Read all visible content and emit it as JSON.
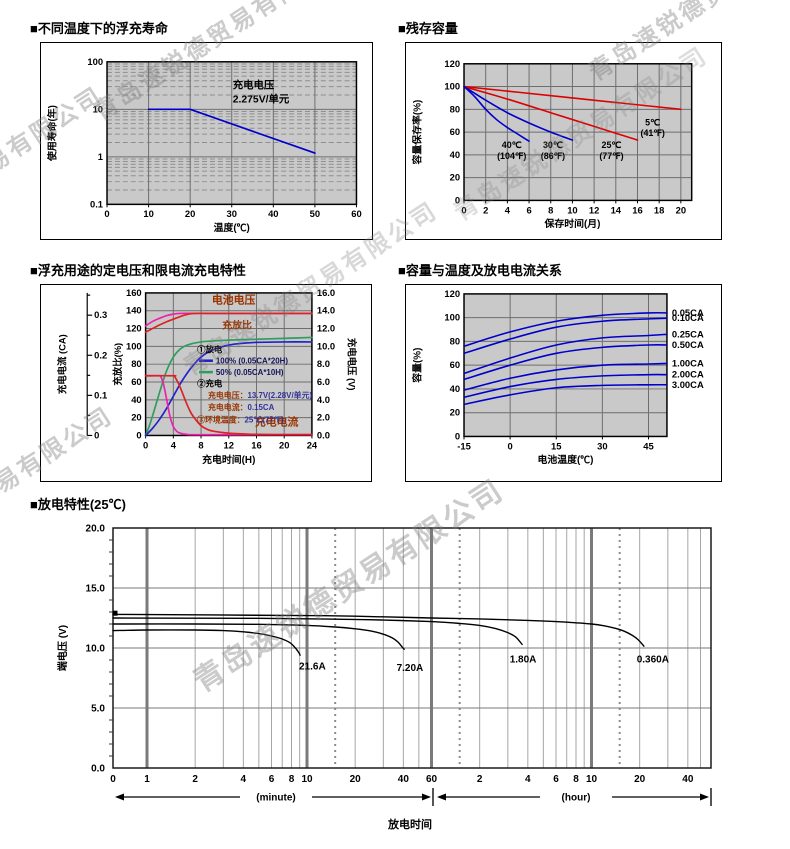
{
  "page": {
    "watermark_text": "青岛速锐德贸易有限公司",
    "background": "#ffffff"
  },
  "sections": {
    "float_life": {
      "title": "■不同温度下的浮充寿命"
    },
    "residual_capacity": {
      "title": "■残存容量"
    },
    "charge_characteristics": {
      "title": "■浮充用途的定电压和限电流充电特性"
    },
    "capacity_vs_temperature": {
      "title": "■容量与温度及放电电流关系"
    },
    "discharge_characteristics": {
      "title": "■放电特性(25℃)"
    }
  },
  "chart_data": [
    {
      "id": "float_life",
      "type": "line",
      "title": "■不同温度下的浮充寿命",
      "xlabel": "温度(℃)",
      "ylabel": "使用寿命(年)",
      "xlim": [
        0,
        60
      ],
      "x_ticks": [
        0,
        10,
        20,
        30,
        40,
        50,
        60
      ],
      "y_scale": "log",
      "ylim": [
        0.1,
        100
      ],
      "y_ticks": [
        100,
        10,
        1,
        0.1
      ],
      "annotation": [
        "充电电压",
        "2.275V/单元"
      ],
      "grid": true,
      "series": [
        {
          "name": "浮充寿命",
          "color": "#0000cc",
          "points": [
            [
              10,
              10
            ],
            [
              20,
              10
            ],
            [
              50,
              1.2
            ]
          ]
        }
      ]
    },
    {
      "id": "residual_capacity",
      "type": "line",
      "title": "■残存容量",
      "xlabel": "保存时间(月)",
      "ylabel": "容量保存率(%)",
      "xlim": [
        0,
        21
      ],
      "x_ticks": [
        0,
        2,
        4,
        6,
        8,
        10,
        12,
        14,
        16,
        18,
        20
      ],
      "ylim": [
        0,
        120
      ],
      "y_ticks": [
        0,
        20,
        40,
        60,
        80,
        100,
        120
      ],
      "grid": true,
      "series": [
        {
          "name": "5C",
          "label": [
            "5℃",
            "(41℉)"
          ],
          "label_pos": [
            17.4,
            66
          ],
          "color": "#dd0000",
          "points": [
            [
              0,
              100
            ],
            [
              5,
              95
            ],
            [
              10,
              90
            ],
            [
              15,
              85
            ],
            [
              20,
              80
            ]
          ]
        },
        {
          "name": "25C",
          "label": [
            "25℃",
            "(77℉)"
          ],
          "label_pos": [
            13.6,
            46
          ],
          "color": "#dd0000",
          "points": [
            [
              0,
              100
            ],
            [
              4,
              89
            ],
            [
              8,
              77
            ],
            [
              12,
              65
            ],
            [
              16,
              53
            ]
          ]
        },
        {
          "name": "30C",
          "label": [
            "30℃",
            "(86℉)"
          ],
          "label_pos": [
            8.2,
            46
          ],
          "color": "#0000cc",
          "points": [
            [
              0,
              100
            ],
            [
              2,
              88
            ],
            [
              4,
              77
            ],
            [
              6,
              68
            ],
            [
              8,
              60
            ],
            [
              10,
              53
            ]
          ]
        },
        {
          "name": "40C",
          "label": [
            "40℃",
            "(104℉)"
          ],
          "label_pos": [
            4.4,
            46
          ],
          "color": "#0000cc",
          "points": [
            [
              0,
              100
            ],
            [
              1,
              91
            ],
            [
              2,
              80
            ],
            [
              3,
              71
            ],
            [
              4,
              64
            ],
            [
              5,
              58
            ],
            [
              6,
              52
            ]
          ]
        }
      ]
    },
    {
      "id": "charge_characteristics",
      "type": "line",
      "title": "■浮充用途的定电压和限电流充电特性",
      "xlabel": "充电时间(H)",
      "xlim": [
        0,
        24
      ],
      "x_ticks": [
        0,
        4,
        8,
        12,
        16,
        20,
        24
      ],
      "axis_current": {
        "label": "充电电流 (CA)",
        "ticks": [
          0,
          0.1,
          0.2,
          0.3
        ],
        "pct_per_ca": 450
      },
      "axis_ratio": {
        "label": "充放比(%)",
        "ticks": [
          0,
          20,
          40,
          60,
          80,
          100,
          120,
          140,
          160
        ],
        "max": 160
      },
      "axis_voltage": {
        "label": "充电电压 (V)",
        "ticks": [
          "0.0",
          "2.0",
          "4.0",
          "6.0",
          "8.0",
          "10.0",
          "12.0",
          "14.0",
          "16.0"
        ],
        "max": 16
      },
      "plot_labels": [
        {
          "text": "电池电压",
          "x": 12.7,
          "pct": 148,
          "size": 11
        },
        {
          "text": "充放比",
          "x": 13.2,
          "pct": 120,
          "size": 10
        },
        {
          "text": "充电电流",
          "x": 18.9,
          "pct": 11,
          "size": 11
        }
      ],
      "legend": [
        {
          "type": "head",
          "text": "①放电"
        },
        {
          "type": "swatch",
          "color": "#2222cc",
          "text": "100% (0.05CA*20H)"
        },
        {
          "type": "swatch",
          "color": "#2e9e5e",
          "text": "50% (0.05CA*10H)"
        },
        {
          "type": "head",
          "text": "②充电"
        },
        {
          "type": "kv",
          "indent": 1,
          "label": "充电电压：",
          "value": "13.7V(2.28V/单元)"
        },
        {
          "type": "kv",
          "indent": 1,
          "label": "充电电流：",
          "value": "0.15CA"
        },
        {
          "type": "kv",
          "indent": 0,
          "label": "③环境温度：",
          "value": "25℃(77℉)"
        }
      ],
      "series": [
        {
          "name": "电池电压(50%放电)",
          "color": "#ee22aa",
          "unit": "V×10",
          "points": [
            [
              0,
              123
            ],
            [
              1,
              128
            ],
            [
              2,
              131.5
            ],
            [
              3,
              134.5
            ],
            [
              4,
              136.2
            ],
            [
              5,
              137
            ],
            [
              8,
              137
            ],
            [
              16,
              137
            ],
            [
              24,
              137
            ]
          ]
        },
        {
          "name": "电池电压(100%放电)",
          "color": "#dd2222",
          "unit": "V×10",
          "points": [
            [
              0,
              116
            ],
            [
              1,
              120
            ],
            [
              2,
              124
            ],
            [
              3,
              127.5
            ],
            [
              4,
              130.5
            ],
            [
              5,
              133.5
            ],
            [
              6,
              135.8
            ],
            [
              7,
              137
            ],
            [
              10,
              137
            ],
            [
              24,
              137
            ]
          ]
        },
        {
          "name": "充放比(50%放电)",
          "color": "#2e9e5e",
          "unit": "%",
          "points": [
            [
              0,
              0
            ],
            [
              0.5,
              10
            ],
            [
              1,
              22
            ],
            [
              2,
              48
            ],
            [
              3,
              72
            ],
            [
              4,
              88
            ],
            [
              5,
              97
            ],
            [
              6,
              101.5
            ],
            [
              8,
              105
            ],
            [
              12,
              107
            ],
            [
              16,
              108
            ],
            [
              20,
              109
            ],
            [
              24,
              110
            ]
          ]
        },
        {
          "name": "充放比(100%放电)",
          "color": "#2222cc",
          "unit": "%",
          "points": [
            [
              0,
              0
            ],
            [
              1,
              8
            ],
            [
              2,
              18
            ],
            [
              3,
              30
            ],
            [
              4,
              44
            ],
            [
              5,
              58
            ],
            [
              6,
              70
            ],
            [
              7,
              80
            ],
            [
              8,
              88
            ],
            [
              9,
              93.5
            ],
            [
              10,
              97
            ],
            [
              12,
              101.5
            ],
            [
              14,
              103.5
            ],
            [
              16,
              104.5
            ],
            [
              20,
              105
            ],
            [
              24,
              105
            ]
          ]
        },
        {
          "name": "充电电流(50%放电)",
          "color": "#ee22aa",
          "unit": "CA(×450)",
          "points": [
            [
              0,
              67
            ],
            [
              2.0,
              67
            ],
            [
              2.2,
              66
            ],
            [
              2.6,
              57
            ],
            [
              3,
              42
            ],
            [
              3.5,
              22
            ],
            [
              4,
              10
            ],
            [
              4.5,
              4.5
            ],
            [
              5,
              2.5
            ],
            [
              6,
              1.2
            ],
            [
              8,
              0.8
            ],
            [
              24,
              0.8
            ]
          ]
        },
        {
          "name": "充电电流(100%放电)",
          "color": "#dd2222",
          "unit": "CA(×450)",
          "points": [
            [
              0,
              67
            ],
            [
              4.0,
              67
            ],
            [
              4.2,
              66
            ],
            [
              4.7,
              59
            ],
            [
              5.2,
              50
            ],
            [
              5.8,
              38
            ],
            [
              6.5,
              26
            ],
            [
              7.2,
              18
            ],
            [
              8,
              11
            ],
            [
              9,
              6.5
            ],
            [
              10,
              4.5
            ],
            [
              12,
              2.5
            ],
            [
              14,
              1.8
            ],
            [
              16,
              1.2
            ],
            [
              20,
              1
            ],
            [
              24,
              1
            ]
          ]
        }
      ]
    },
    {
      "id": "capacity_vs_temperature",
      "type": "line",
      "title": "■容量与温度及放电电流关系",
      "xlabel": "电池温度(℃)",
      "ylabel": "容量(%)",
      "xlim": [
        -15,
        51
      ],
      "x_ticks": [
        -15,
        0,
        15,
        30,
        45
      ],
      "ylim": [
        0,
        120
      ],
      "y_ticks": [
        0,
        20,
        40,
        60,
        80,
        100,
        120
      ],
      "grid": true,
      "line_color": "#0000cc",
      "x_samples": [
        -15,
        0,
        15,
        30,
        45,
        51
      ],
      "series": [
        {
          "name": "0.05CA",
          "values": [
            76,
            88,
            97,
            102,
            104,
            104
          ]
        },
        {
          "name": "0.10CA",
          "values": [
            70,
            82,
            92,
            97,
            99,
            99.5
          ]
        },
        {
          "name": "0.25CA",
          "values": [
            53,
            66,
            77,
            83,
            85,
            86
          ]
        },
        {
          "name": "0.50CA",
          "values": [
            48,
            60,
            70,
            75,
            77,
            77
          ]
        },
        {
          "name": "1.00CA",
          "values": [
            39,
            49,
            56,
            60,
            61,
            61.5
          ]
        },
        {
          "name": "2.00CA",
          "values": [
            33,
            42,
            48,
            51,
            52,
            52
          ]
        },
        {
          "name": "3.00CA",
          "values": [
            27,
            35,
            41,
            43,
            43.5,
            43.5
          ]
        }
      ]
    },
    {
      "id": "discharge_characteristics",
      "type": "line",
      "title": "■放电特性(25℃)",
      "xlabel": "放电时间",
      "ylabel": "端电压 (V)",
      "ylim": [
        0,
        20
      ],
      "y_ticks": [
        "20.0",
        "15.0",
        "10.0",
        "5.0",
        "0.0"
      ],
      "x_axis": {
        "zero_label": "0",
        "minute_label": "(minute)",
        "hour_label": "(hour)",
        "minute_tick_labels": [
          1,
          2,
          4,
          6,
          8,
          10,
          20,
          40,
          60
        ],
        "hour_tick_labels": [
          2,
          4,
          6,
          8,
          10,
          20,
          40
        ],
        "minute_gridlines": [
          2,
          3,
          4,
          5,
          6,
          7,
          8,
          9,
          20,
          30,
          40,
          50
        ],
        "hour_gridlines": [
          2,
          3,
          4,
          5,
          6,
          7,
          8,
          9,
          20,
          30,
          40,
          48
        ],
        "decade_lines_min": [
          1,
          10,
          60,
          600
        ],
        "dotted_lines_min": [
          15,
          90,
          900
        ],
        "max_minutes": 3360
      },
      "start_marker_v": 12.9,
      "series": [
        {
          "name": "21.6A",
          "label": "21.6A",
          "label_at": [
            10.8,
            8.2
          ],
          "points_min": [
            [
              0,
              11.45
            ],
            [
              1,
              11.5
            ],
            [
              2,
              11.5
            ],
            [
              3,
              11.45
            ],
            [
              4,
              11.35
            ],
            [
              5,
              11.2
            ],
            [
              6,
              11.0
            ],
            [
              7,
              10.75
            ],
            [
              7.8,
              10.45
            ],
            [
              8.4,
              10.05
            ],
            [
              8.9,
              9.6
            ],
            [
              9.05,
              9.4
            ]
          ]
        },
        {
          "name": "7.20A",
          "label": "7.20A",
          "label_at": [
            44,
            8.1
          ],
          "points_min": [
            [
              0,
              12.0
            ],
            [
              2,
              12.0
            ],
            [
              5,
              11.97
            ],
            [
              10,
              11.88
            ],
            [
              15,
              11.75
            ],
            [
              20,
              11.6
            ],
            [
              25,
              11.42
            ],
            [
              30,
              11.15
            ],
            [
              34,
              10.85
            ],
            [
              37,
              10.5
            ],
            [
              39.5,
              10.05
            ],
            [
              40.5,
              9.9
            ]
          ]
        },
        {
          "name": "1.80A",
          "label": "1.80A",
          "label_at": [
            224,
            8.8
          ],
          "points_min": [
            [
              0,
              12.5
            ],
            [
              5,
              12.47
            ],
            [
              15,
              12.4
            ],
            [
              30,
              12.33
            ],
            [
              60,
              12.2
            ],
            [
              90,
              12.05
            ],
            [
              120,
              11.88
            ],
            [
              150,
              11.63
            ],
            [
              180,
              11.28
            ],
            [
              200,
              10.95
            ],
            [
              212,
              10.6
            ],
            [
              221,
              10.3
            ]
          ]
        },
        {
          "name": "0.360A",
          "label": "0.360A",
          "label_at": [
            1450,
            8.8
          ],
          "points_min": [
            [
              0,
              12.8
            ],
            [
              10,
              12.7
            ],
            [
              30,
              12.6
            ],
            [
              60,
              12.5
            ],
            [
              120,
              12.42
            ],
            [
              240,
              12.3
            ],
            [
              360,
              12.2
            ],
            [
              480,
              12.1
            ],
            [
              600,
              12.0
            ],
            [
              720,
              11.85
            ],
            [
              840,
              11.65
            ],
            [
              960,
              11.4
            ],
            [
              1080,
              11.05
            ],
            [
              1160,
              10.75
            ],
            [
              1230,
              10.4
            ],
            [
              1275,
              10.15
            ]
          ]
        }
      ]
    }
  ]
}
